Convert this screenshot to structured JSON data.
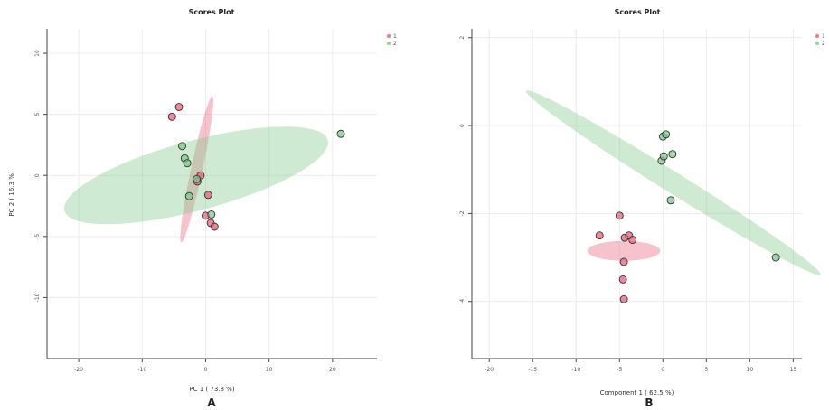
{
  "chart_data": [
    {
      "type": "scatter",
      "title": "Scores Plot",
      "xlabel": "PC 1 ( 73.8 %)",
      "ylabel": "PC 2 ( 16.3 %)",
      "panel_label": "A",
      "xlim": [
        -25,
        27
      ],
      "ylim": [
        -15,
        12
      ],
      "xticks": [
        "-20",
        "-10",
        "0",
        "10",
        "20"
      ],
      "yticks": [
        "10",
        "5",
        "0",
        "-5",
        "-10"
      ],
      "ytick_values": [
        10,
        5,
        0,
        -5,
        -10
      ],
      "xtick_values": [
        -20,
        -10,
        0,
        10,
        20
      ],
      "grid": true,
      "legend_position": "top-right",
      "series": [
        {
          "name": "1",
          "color": "#e8607a",
          "points": [
            [
              -4.2,
              5.6
            ],
            [
              -5.3,
              4.8
            ],
            [
              -0.8,
              0.0
            ],
            [
              -1.3,
              -0.5
            ],
            [
              0.4,
              -1.6
            ],
            [
              0.0,
              -3.3
            ],
            [
              0.8,
              -3.9
            ],
            [
              1.4,
              -4.2
            ]
          ],
          "ellipse": {
            "cx": -1.4,
            "cy": 0.5,
            "rx": 11.8,
            "ry": 0.9,
            "angle_deg": 78
          }
        },
        {
          "name": "2",
          "color": "#7ec88a",
          "points": [
            [
              -3.7,
              2.4
            ],
            [
              -3.3,
              1.4
            ],
            [
              -2.9,
              1.0
            ],
            [
              -1.4,
              -0.3
            ],
            [
              -2.6,
              -1.7
            ],
            [
              0.9,
              -3.2
            ],
            [
              21.3,
              3.4
            ]
          ],
          "ellipse": {
            "cx": -1.5,
            "cy": 0.0,
            "rx": 21.5,
            "ry": 5.5,
            "angle_deg": 15
          }
        }
      ]
    },
    {
      "type": "scatter",
      "title": "Scores Plot",
      "xlabel": "Component 1 ( 62.5 %)",
      "ylabel": "",
      "panel_label": "B",
      "xlim": [
        -22,
        16
      ],
      "ylim": [
        -5.3,
        2.2
      ],
      "xticks": [
        "-20",
        "-15",
        "-10",
        "-5",
        "0",
        "5",
        "10",
        "15"
      ],
      "xtick_values": [
        -20,
        -15,
        -10,
        -5,
        0,
        5,
        10,
        15
      ],
      "yticks": [
        "2",
        "0",
        "-2",
        "-4"
      ],
      "ytick_values": [
        2,
        0,
        -2,
        -4
      ],
      "grid": true,
      "legend_position": "top-right",
      "series": [
        {
          "name": "1",
          "color": "#e8607a",
          "points": [
            [
              -7.3,
              -2.5
            ],
            [
              -5.0,
              -2.05
            ],
            [
              -4.4,
              -2.55
            ],
            [
              -3.9,
              -2.5
            ],
            [
              -3.5,
              -2.6
            ],
            [
              -4.5,
              -3.1
            ],
            [
              -4.6,
              -3.5
            ],
            [
              -4.5,
              -3.95
            ]
          ],
          "ellipse": {
            "cx": -4.5,
            "cy": -2.85,
            "rx": 4.2,
            "ry": 1.15,
            "angle_deg": 0
          }
        },
        {
          "name": "2",
          "color": "#7ec88a",
          "points": [
            [
              0.0,
              -0.25
            ],
            [
              0.35,
              -0.2
            ],
            [
              -0.15,
              -0.8
            ],
            [
              0.1,
              -0.7
            ],
            [
              1.1,
              -0.65
            ],
            [
              0.9,
              -1.7
            ],
            [
              13.0,
              -3.0
            ]
          ],
          "ellipse": {
            "cx": 1.2,
            "cy": -1.3,
            "rx": 20.0,
            "ry": 1.2,
            "angle_deg": -32
          }
        }
      ]
    }
  ]
}
